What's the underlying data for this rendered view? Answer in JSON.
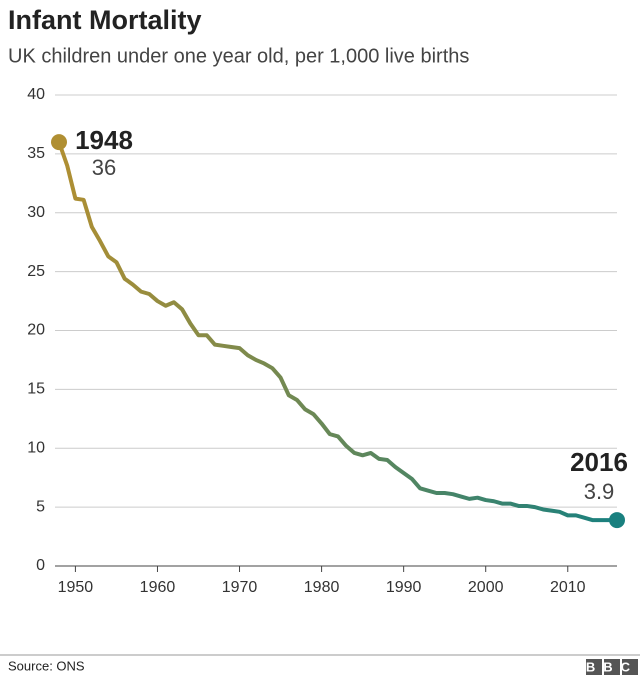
{
  "chart_data": {
    "type": "line",
    "title": "Infant Mortality",
    "subtitle": "UK children under one year old, per 1,000 live births",
    "source": "Source: ONS",
    "logo": "BBC",
    "x": [
      1948,
      1949,
      1950,
      1951,
      1952,
      1953,
      1954,
      1955,
      1956,
      1957,
      1958,
      1959,
      1960,
      1961,
      1962,
      1963,
      1964,
      1965,
      1966,
      1967,
      1968,
      1969,
      1970,
      1971,
      1972,
      1973,
      1974,
      1975,
      1976,
      1977,
      1978,
      1979,
      1980,
      1981,
      1982,
      1983,
      1984,
      1985,
      1986,
      1987,
      1988,
      1989,
      1990,
      1991,
      1992,
      1993,
      1994,
      1995,
      1996,
      1997,
      1998,
      1999,
      2000,
      2001,
      2002,
      2003,
      2004,
      2005,
      2006,
      2007,
      2008,
      2009,
      2010,
      2011,
      2012,
      2013,
      2014,
      2015,
      2016
    ],
    "values": [
      36,
      34,
      31.2,
      31.1,
      28.8,
      27.6,
      26.3,
      25.8,
      24.4,
      23.9,
      23.3,
      23.1,
      22.5,
      22.1,
      22.4,
      21.8,
      20.6,
      19.6,
      19.6,
      18.8,
      18.7,
      18.6,
      18.5,
      17.9,
      17.5,
      17.2,
      16.8,
      16.0,
      14.5,
      14.1,
      13.3,
      12.9,
      12.1,
      11.2,
      11.0,
      10.2,
      9.6,
      9.4,
      9.6,
      9.1,
      9.0,
      8.4,
      7.9,
      7.4,
      6.6,
      6.4,
      6.2,
      6.2,
      6.1,
      5.9,
      5.7,
      5.8,
      5.6,
      5.5,
      5.3,
      5.3,
      5.1,
      5.1,
      5.0,
      4.8,
      4.7,
      4.6,
      4.3,
      4.3,
      4.1,
      3.9,
      3.9,
      3.9,
      3.9
    ],
    "color_start": "#b08f32",
    "color_end": "#19807f",
    "annotations": [
      {
        "label": "1948",
        "value_label": "36"
      },
      {
        "label": "2016",
        "value_label": "3.9"
      }
    ],
    "xlim": [
      1948,
      2016
    ],
    "xticks": [
      1950,
      1960,
      1970,
      1980,
      1990,
      2000,
      2010
    ],
    "ylim": [
      0,
      40
    ],
    "yticks": [
      0,
      5,
      10,
      15,
      20,
      25,
      30,
      35,
      40
    ],
    "grid": true
  }
}
